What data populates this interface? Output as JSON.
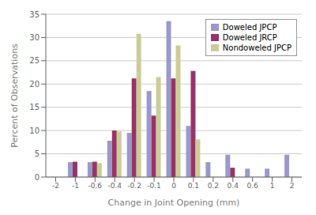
{
  "chart_data": {
    "type": "bar",
    "categories": [
      "-2",
      "-1",
      "-0.6",
      "-0.4",
      "-0.2",
      "-0.1",
      "0",
      "0.1",
      "0.2",
      "0.4",
      "0.6",
      "1",
      "2"
    ],
    "series": [
      {
        "name": "Doweled JPCP",
        "color": "#9999cc",
        "values": [
          0,
          3.2,
          3.2,
          7.8,
          9.5,
          18.5,
          33.5,
          11.0,
          3.2,
          4.8,
          1.8,
          1.8,
          4.8
        ]
      },
      {
        "name": "Doweled JRCP",
        "color": "#993366",
        "values": [
          0,
          3.3,
          3.3,
          10.0,
          21.2,
          13.2,
          21.2,
          22.8,
          0,
          2.0,
          0,
          0,
          0
        ]
      },
      {
        "name": "Nondoweled JPCP",
        "color": "#cccc99",
        "values": [
          0,
          0,
          3.0,
          9.8,
          30.8,
          21.5,
          28.3,
          8.1,
          0,
          0,
          0,
          0,
          0
        ]
      }
    ],
    "xlabel": "Change in Joint Opening (mm)",
    "ylabel": "Percent of Observations",
    "ylim": [
      0,
      35
    ],
    "yticks": [
      0,
      5,
      10,
      15,
      20,
      25,
      30,
      35
    ],
    "grid": true,
    "legend": "upper right"
  }
}
